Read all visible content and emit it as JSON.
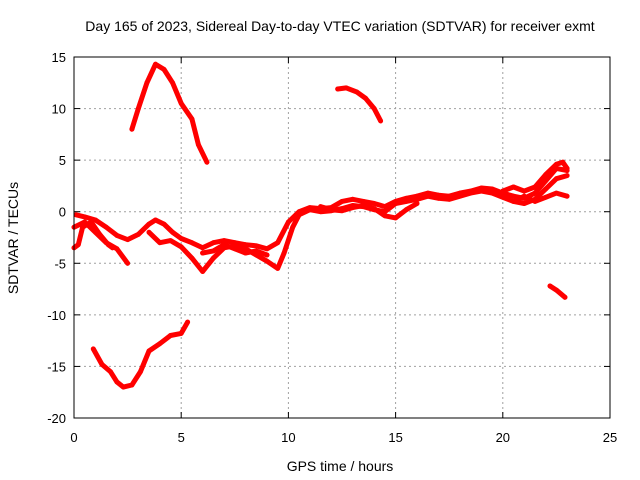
{
  "chart_data": {
    "type": "scatter",
    "title": "Day 165 of 2023, Sidereal Day-to-day VTEC variation (SDTVAR) for receiver exmt",
    "xlabel": "GPS time / hours",
    "ylabel": "SDTVAR / TECUs",
    "xlim": [
      0,
      25
    ],
    "ylim": [
      -20,
      15
    ],
    "x_ticks": [
      0,
      5,
      10,
      15,
      20,
      25
    ],
    "x_tick_labels": [
      "0",
      "5",
      "10",
      "15",
      "20",
      "25"
    ],
    "y_ticks": [
      -20,
      -15,
      -10,
      -5,
      0,
      5,
      10,
      15
    ],
    "y_tick_labels": [
      "-20",
      "-15",
      "-10",
      "-5",
      "0",
      "5",
      "10",
      "15"
    ],
    "grid": true,
    "series_color": "#ff0000",
    "series": [
      {
        "name": "arc-1",
        "points": [
          [
            0.0,
            -1.5
          ],
          [
            0.5,
            -1.0
          ],
          [
            1.0,
            -2.0
          ],
          [
            1.5,
            -3.0
          ],
          [
            2.0,
            -3.6
          ],
          [
            2.5,
            -5.0
          ]
        ]
      },
      {
        "name": "arc-2",
        "points": [
          [
            0.0,
            -3.5
          ],
          [
            0.2,
            -3.2
          ],
          [
            0.4,
            -1.5
          ],
          [
            0.8,
            -1.0
          ],
          [
            1.2,
            -2.2
          ],
          [
            1.6,
            -3.2
          ],
          [
            1.8,
            -3.5
          ]
        ]
      },
      {
        "name": "arc-3",
        "points": [
          [
            0.1,
            -0.3
          ],
          [
            0.5,
            -0.5
          ],
          [
            1.0,
            -0.8
          ],
          [
            1.5,
            -1.5
          ],
          [
            2.0,
            -2.3
          ],
          [
            2.5,
            -2.7
          ],
          [
            3.0,
            -2.2
          ],
          [
            3.5,
            -1.2
          ],
          [
            3.8,
            -0.8
          ],
          [
            4.2,
            -1.2
          ],
          [
            4.6,
            -2.0
          ],
          [
            5.0,
            -2.6
          ],
          [
            5.5,
            -3.0
          ],
          [
            6.0,
            -3.5
          ],
          [
            6.5,
            -3.0
          ],
          [
            7.0,
            -2.8
          ],
          [
            7.5,
            -3.0
          ],
          [
            8.0,
            -3.2
          ],
          [
            8.5,
            -3.3
          ],
          [
            9.0,
            -3.6
          ],
          [
            9.5,
            -3.0
          ],
          [
            10.0,
            -1.0
          ],
          [
            10.5,
            0.0
          ],
          [
            11.0,
            0.4
          ],
          [
            11.5,
            0.3
          ],
          [
            12.0,
            0.4
          ],
          [
            12.5,
            1.0
          ],
          [
            13.0,
            1.2
          ],
          [
            13.5,
            1.0
          ],
          [
            14.0,
            0.8
          ],
          [
            14.5,
            0.5
          ],
          [
            15.0,
            1.0
          ],
          [
            15.5,
            1.3
          ],
          [
            16.0,
            1.5
          ],
          [
            16.5,
            1.8
          ],
          [
            17.0,
            1.6
          ],
          [
            17.5,
            1.5
          ],
          [
            18.0,
            1.8
          ],
          [
            18.5,
            2.0
          ],
          [
            19.0,
            2.3
          ],
          [
            19.5,
            2.2
          ],
          [
            20.0,
            1.8
          ],
          [
            20.5,
            1.5
          ],
          [
            21.0,
            1.3
          ],
          [
            21.5,
            1.8
          ],
          [
            22.0,
            3.0
          ],
          [
            22.5,
            4.2
          ],
          [
            23.0,
            4.0
          ]
        ]
      },
      {
        "name": "arc-4",
        "points": [
          [
            3.5,
            -2.0
          ],
          [
            4.0,
            -3.0
          ],
          [
            4.5,
            -2.8
          ],
          [
            5.0,
            -3.4
          ],
          [
            5.5,
            -4.5
          ],
          [
            6.0,
            -5.8
          ],
          [
            6.5,
            -4.5
          ],
          [
            7.0,
            -3.5
          ],
          [
            7.5,
            -3.3
          ],
          [
            8.0,
            -3.6
          ],
          [
            8.5,
            -4.2
          ],
          [
            9.0,
            -4.8
          ],
          [
            9.5,
            -5.5
          ],
          [
            9.8,
            -4.0
          ],
          [
            10.2,
            -1.5
          ],
          [
            10.5,
            -0.3
          ],
          [
            11.0,
            0.2
          ],
          [
            11.5,
            0.0
          ],
          [
            12.0,
            0.1
          ],
          [
            12.5,
            0.3
          ],
          [
            13.0,
            0.6
          ],
          [
            13.5,
            0.5
          ],
          [
            14.0,
            0.2
          ],
          [
            14.5,
            0.0
          ],
          [
            15.0,
            0.8
          ],
          [
            15.5,
            1.0
          ],
          [
            16.0,
            1.2
          ],
          [
            16.5,
            1.5
          ],
          [
            17.0,
            1.3
          ],
          [
            17.5,
            1.2
          ],
          [
            18.0,
            1.5
          ],
          [
            18.5,
            1.8
          ],
          [
            19.0,
            2.0
          ],
          [
            19.5,
            1.8
          ],
          [
            20.0,
            1.4
          ],
          [
            20.5,
            1.0
          ],
          [
            21.0,
            0.8
          ],
          [
            21.5,
            1.2
          ],
          [
            22.0,
            2.2
          ],
          [
            22.5,
            3.2
          ],
          [
            23.0,
            3.5
          ]
        ]
      },
      {
        "name": "arc-5",
        "points": [
          [
            6.0,
            -4.0
          ],
          [
            6.5,
            -3.8
          ],
          [
            7.0,
            -3.2
          ],
          [
            7.5,
            -3.6
          ],
          [
            8.0,
            -4.0
          ],
          [
            8.5,
            -3.8
          ],
          [
            9.0,
            -4.2
          ]
        ]
      },
      {
        "name": "arc-6",
        "points": [
          [
            11.5,
            0.5
          ],
          [
            12.0,
            0.2
          ],
          [
            12.5,
            0.1
          ],
          [
            13.0,
            0.4
          ],
          [
            13.5,
            0.6
          ],
          [
            14.0,
            0.3
          ],
          [
            14.5,
            -0.4
          ],
          [
            15.0,
            -0.6
          ],
          [
            15.5,
            0.2
          ],
          [
            16.0,
            0.8
          ]
        ]
      },
      {
        "name": "arc-7",
        "points": [
          [
            20.5,
            1.0
          ],
          [
            21.0,
            1.5
          ],
          [
            21.5,
            1.0
          ],
          [
            22.0,
            1.4
          ],
          [
            22.5,
            1.8
          ],
          [
            23.0,
            1.5
          ]
        ]
      },
      {
        "name": "arc-8",
        "points": [
          [
            20.0,
            2.0
          ],
          [
            20.5,
            2.4
          ],
          [
            21.0,
            2.0
          ],
          [
            21.5,
            2.4
          ],
          [
            22.0,
            3.6
          ],
          [
            22.5,
            4.6
          ],
          [
            22.8,
            4.8
          ],
          [
            23.0,
            4.2
          ]
        ]
      },
      {
        "name": "arc-9",
        "points": [
          [
            2.7,
            8.0
          ],
          [
            3.0,
            10.0
          ],
          [
            3.4,
            12.5
          ],
          [
            3.8,
            14.3
          ],
          [
            4.2,
            13.8
          ],
          [
            4.6,
            12.5
          ],
          [
            5.0,
            10.5
          ],
          [
            5.5,
            9.0
          ],
          [
            5.8,
            6.5
          ],
          [
            6.2,
            4.8
          ]
        ]
      },
      {
        "name": "arc-10",
        "points": [
          [
            12.3,
            11.9
          ],
          [
            12.7,
            12.0
          ],
          [
            13.2,
            11.6
          ],
          [
            13.6,
            11.0
          ],
          [
            14.0,
            10.0
          ],
          [
            14.3,
            8.8
          ]
        ]
      },
      {
        "name": "arc-11",
        "points": [
          [
            0.9,
            -13.3
          ],
          [
            1.3,
            -14.8
          ],
          [
            1.7,
            -15.5
          ],
          [
            2.0,
            -16.5
          ],
          [
            2.3,
            -17.0
          ],
          [
            2.7,
            -16.8
          ],
          [
            3.1,
            -15.5
          ],
          [
            3.5,
            -13.5
          ],
          [
            4.0,
            -12.8
          ],
          [
            4.5,
            -12.0
          ],
          [
            5.0,
            -11.8
          ],
          [
            5.3,
            -10.7
          ]
        ]
      },
      {
        "name": "arc-12",
        "points": [
          [
            22.2,
            -7.2
          ],
          [
            22.5,
            -7.6
          ],
          [
            22.9,
            -8.3
          ]
        ]
      }
    ]
  }
}
